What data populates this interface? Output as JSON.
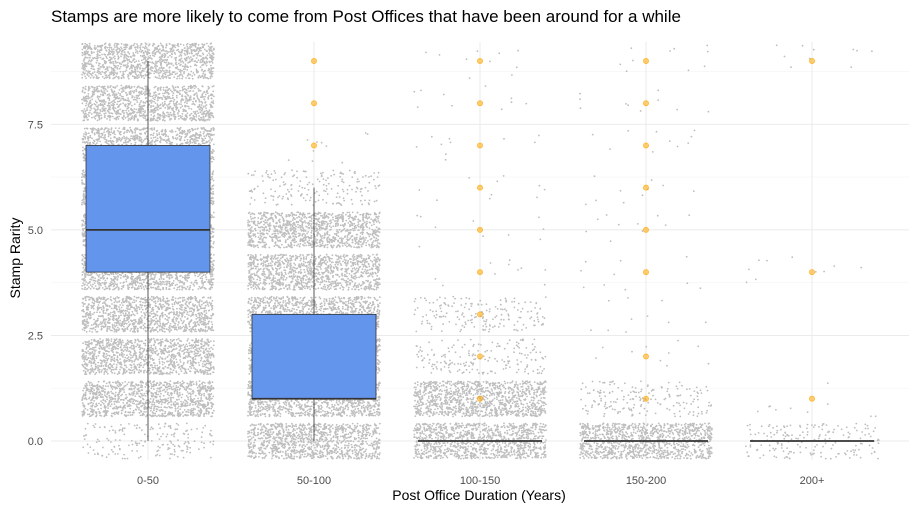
{
  "chart_data": {
    "type": "boxplot",
    "title": "Stamps are more likely to come from Post Offices that have been around for a while",
    "xlabel": "Post Office Duration (Years)",
    "ylabel": "Stamp Rarity",
    "ylim": [
      -0.45,
      9.45
    ],
    "yticks": [
      {
        "value": 0,
        "label": "0.0"
      },
      {
        "value": 2.5,
        "label": "2.5"
      },
      {
        "value": 5,
        "label": "5.0"
      },
      {
        "value": 7.5,
        "label": "7.5"
      }
    ],
    "categories": [
      "0-50",
      "50-100",
      "100-150",
      "150-200",
      "200+"
    ],
    "boxes": [
      {
        "category": "0-50",
        "min": 0,
        "q1": 4,
        "median": 5,
        "q3": 7,
        "max": 9
      },
      {
        "category": "50-100",
        "min": 0,
        "q1": 1,
        "median": 1,
        "q3": 3,
        "max": 6
      },
      {
        "category": "100-150",
        "min": 0,
        "q1": 0,
        "median": 0,
        "q3": 0,
        "max": 0
      },
      {
        "category": "150-200",
        "min": 0,
        "q1": 0,
        "median": 0,
        "q3": 0,
        "max": 0
      },
      {
        "category": "200+",
        "min": 0,
        "q1": 0,
        "median": 0,
        "q3": 0,
        "max": 0
      }
    ],
    "jitter_bands": [
      {
        "category": "0-50",
        "levels": [
          0,
          1,
          2,
          3,
          4,
          5,
          6,
          7,
          8,
          9
        ],
        "density": [
          "medium",
          "dense",
          "dense",
          "dense",
          "dense",
          "dense",
          "dense",
          "dense",
          "dense",
          "dense"
        ]
      },
      {
        "category": "50-100",
        "levels": [
          0,
          1,
          2,
          3,
          4,
          5,
          6,
          7
        ],
        "density": [
          "dense",
          "dense",
          "dense",
          "dense",
          "dense",
          "dense",
          "medium",
          "sparse"
        ]
      },
      {
        "category": "100-150",
        "levels": [
          0,
          1,
          2,
          3,
          4,
          5,
          6,
          7,
          8,
          9
        ],
        "density": [
          "dense",
          "dense",
          "medium",
          "medium",
          "sparse",
          "sparse",
          "sparse",
          "sparse",
          "sparse",
          "sparse"
        ]
      },
      {
        "category": "150-200",
        "levels": [
          0,
          1,
          2,
          3,
          4,
          5,
          6,
          7,
          8,
          9
        ],
        "density": [
          "dense",
          "medium",
          "sparse",
          "sparse",
          "sparse",
          "sparse",
          "sparse",
          "sparse",
          "sparse",
          "sparse"
        ]
      },
      {
        "category": "200+",
        "levels": [
          0,
          1,
          4,
          9
        ],
        "density": [
          "medium",
          "sparse",
          "sparse",
          "sparse"
        ]
      }
    ],
    "highlight_points": [
      {
        "category": "50-100",
        "values": [
          9,
          8,
          7
        ]
      },
      {
        "category": "100-150",
        "values": [
          9,
          8,
          7,
          6,
          5,
          4,
          3,
          2,
          1
        ]
      },
      {
        "category": "150-200",
        "values": [
          9,
          8,
          7,
          6,
          5,
          4,
          2,
          1
        ]
      },
      {
        "category": "200+",
        "values": [
          9,
          4,
          1
        ]
      }
    ],
    "colors": {
      "box_fill": "#6495ED",
      "box_stroke": "#333333",
      "jitter": "#bebebe",
      "highlight": "#FFA500",
      "grid": "#ebebeb"
    }
  }
}
